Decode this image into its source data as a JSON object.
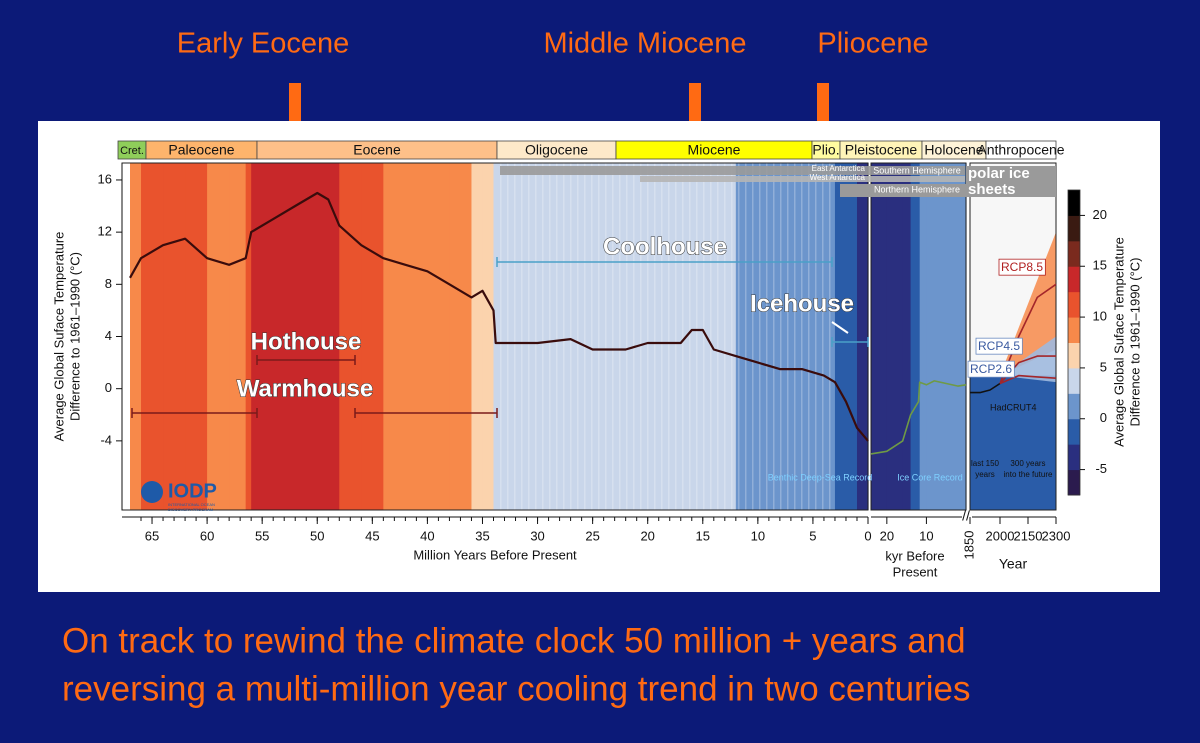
{
  "slide": {
    "labels": [
      "Early Eocene",
      "Middle Miocene",
      "Pliocene"
    ],
    "caption": [
      "On track to rewind the climate clock 50 million + years and",
      "reversing a multi-million year cooling trend in two centuries"
    ]
  },
  "chart_data": [
    {
      "type": "line",
      "ylabel": [
        "Average Global Suface Temperature",
        "Difference to 1961–1990 (°C)"
      ],
      "xlabel": "Million Years Before Present",
      "xlim": [
        67,
        0
      ],
      "ylim": [
        -9.3,
        17.3
      ],
      "xticks": [
        65,
        60,
        55,
        50,
        45,
        40,
        35,
        30,
        25,
        20,
        15,
        10,
        5,
        0
      ],
      "yticks": [
        -4,
        0,
        4,
        8,
        12,
        16
      ],
      "x": [
        67,
        66,
        64,
        62,
        60,
        58,
        56.5,
        56,
        54,
        52,
        50,
        49,
        48,
        46,
        44,
        42,
        40,
        38,
        36,
        35,
        34,
        33.8,
        32,
        30,
        27,
        25,
        22,
        20,
        17,
        16,
        15,
        14,
        12,
        10,
        8,
        6,
        4,
        3,
        2,
        1,
        0
      ],
      "series": [
        {
          "name": "Benthic Deep-Sea Record",
          "color": "#3a0c0c",
          "values": [
            8.5,
            10,
            11,
            11.5,
            10,
            9.5,
            10,
            12,
            13,
            14,
            15,
            14.5,
            12.5,
            11,
            10,
            9.5,
            9,
            8,
            7,
            7.5,
            6,
            3.5,
            3.5,
            3.5,
            3.8,
            3,
            3,
            3.5,
            3.5,
            4.5,
            4.5,
            3,
            2.5,
            2,
            1.5,
            1.5,
            1,
            0.5,
            -1,
            -3,
            -4
          ]
        }
      ],
      "epochs": [
        "Cret.",
        "Paleocene",
        "Eocene",
        "Oligocene",
        "Miocene",
        "Plio.",
        "Pleistocene",
        "Holocene",
        "Anthropocene"
      ],
      "annotations": {
        "hothouse": "Hothouse",
        "warmhouse": "Warmhouse",
        "coolhouse": "Coolhouse",
        "icehouse": "Icehouse"
      },
      "ice_sheets": [
        "East Antarctica",
        "West Antarctica",
        "Southern Hemisphere",
        "Northern Hemisphere"
      ],
      "ice_label": [
        "polar ice",
        "sheets"
      ],
      "logo": {
        "name": "IODP",
        "subtitle": [
          "INTERNATIONAL OCEAN",
          "DISCOVERY PROGRAM"
        ]
      },
      "colorbar": {
        "label": [
          "Average Global Suface Temperature",
          "Difference to 1961–1990 (°C)"
        ],
        "lim": [
          -7.5,
          22.5
        ],
        "ticks": [
          -5,
          0,
          5,
          10,
          15,
          20
        ],
        "colors": [
          "#2b1b4e",
          "#2a2f7f",
          "#2a5ca8",
          "#6c95cc",
          "#c9d6ea",
          "#fbd3ad",
          "#f7894a",
          "#e9532d",
          "#c8282a",
          "#7a2a1e",
          "#3a1a12",
          "#000000"
        ]
      }
    },
    {
      "type": "line",
      "xlabel": [
        "kyr Before",
        "Present"
      ],
      "xlim": [
        24,
        0
      ],
      "ylim": [
        -9.3,
        17.3
      ],
      "xticks": [
        20,
        10
      ],
      "x": [
        24,
        20,
        16,
        14,
        12,
        11.7,
        10,
        8,
        5,
        2,
        0
      ],
      "series": [
        {
          "name": "Ice Core Record",
          "color": "#6f9a45",
          "values": [
            -5,
            -4.8,
            -4,
            -2,
            -1,
            0.5,
            0.3,
            0.6,
            0.4,
            0.2,
            0.3
          ]
        }
      ]
    },
    {
      "type": "line",
      "xlabel": "Year",
      "xlim": [
        1850,
        2300
      ],
      "ylim": [
        -9.3,
        17.3
      ],
      "xticks": [
        1850,
        2000,
        2150,
        2300
      ],
      "notes": [
        [
          "last 150",
          "years"
        ],
        [
          "300 years",
          "into the future"
        ]
      ],
      "x": [
        1850,
        1900,
        1950,
        2000,
        2100,
        2200,
        2300
      ],
      "series": [
        {
          "name": "HadCRUT4",
          "color": "#111111",
          "values": [
            -0.3,
            -0.3,
            -0.1,
            0.4,
            null,
            null,
            null
          ]
        },
        {
          "name": "RCP8.5",
          "color": "#a3262a",
          "values": [
            null,
            null,
            null,
            0.4,
            4,
            7,
            8
          ]
        },
        {
          "name": "RCP4.5",
          "color": "#a3262a",
          "values": [
            null,
            null,
            null,
            0.4,
            2,
            2.5,
            2.5
          ]
        },
        {
          "name": "RCP2.6",
          "color": "#a3262a",
          "values": [
            null,
            null,
            null,
            0.4,
            1,
            0.9,
            0.8
          ]
        }
      ]
    }
  ]
}
